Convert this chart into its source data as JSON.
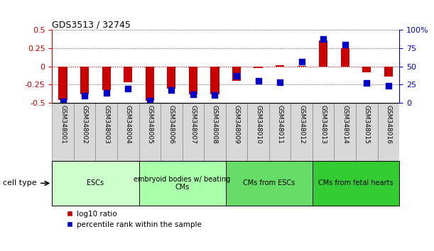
{
  "title": "GDS3513 / 32745",
  "samples": [
    "GSM348001",
    "GSM348002",
    "GSM348003",
    "GSM348004",
    "GSM348005",
    "GSM348006",
    "GSM348007",
    "GSM348008",
    "GSM348009",
    "GSM348010",
    "GSM348011",
    "GSM348012",
    "GSM348013",
    "GSM348014",
    "GSM348015",
    "GSM348016"
  ],
  "log10_ratio": [
    -0.46,
    -0.38,
    -0.32,
    -0.22,
    -0.47,
    -0.3,
    -0.38,
    -0.38,
    -0.2,
    -0.02,
    0.02,
    0.01,
    0.36,
    0.25,
    -0.08,
    -0.14
  ],
  "percentile_rank": [
    2,
    10,
    14,
    20,
    3,
    18,
    12,
    11,
    37,
    30,
    28,
    57,
    88,
    80,
    27,
    24
  ],
  "cell_type_groups": [
    {
      "label": "ESCs",
      "start": 0,
      "end": 3,
      "color": "#ccffcc"
    },
    {
      "label": "embryoid bodies w/ beating\nCMs",
      "start": 4,
      "end": 7,
      "color": "#aaffaa"
    },
    {
      "label": "CMs from ESCs",
      "start": 8,
      "end": 11,
      "color": "#66dd66"
    },
    {
      "label": "CMs from fetal hearts",
      "start": 12,
      "end": 15,
      "color": "#33cc33"
    }
  ],
  "bar_color": "#cc0000",
  "dot_color": "#0000cc",
  "ylim_left": [
    -0.5,
    0.5
  ],
  "ylim_right": [
    0,
    100
  ],
  "yticks_left": [
    -0.5,
    -0.25,
    0,
    0.25,
    0.5
  ],
  "ytick_labels_left": [
    "-0.5",
    "-0.25",
    "0",
    "0.25",
    "0.5"
  ],
  "yticks_right": [
    0,
    25,
    50,
    75,
    100
  ],
  "ytick_labels_right": [
    "0",
    "25",
    "50",
    "75",
    "100%"
  ],
  "legend_items": [
    {
      "label": "log10 ratio",
      "color": "#cc0000"
    },
    {
      "label": "percentile rank within the sample",
      "color": "#0000cc"
    }
  ],
  "cell_type_label": "cell type",
  "bar_width": 0.4,
  "dot_size": 40,
  "label_fontsize": 6.5,
  "tick_fontsize": 8
}
